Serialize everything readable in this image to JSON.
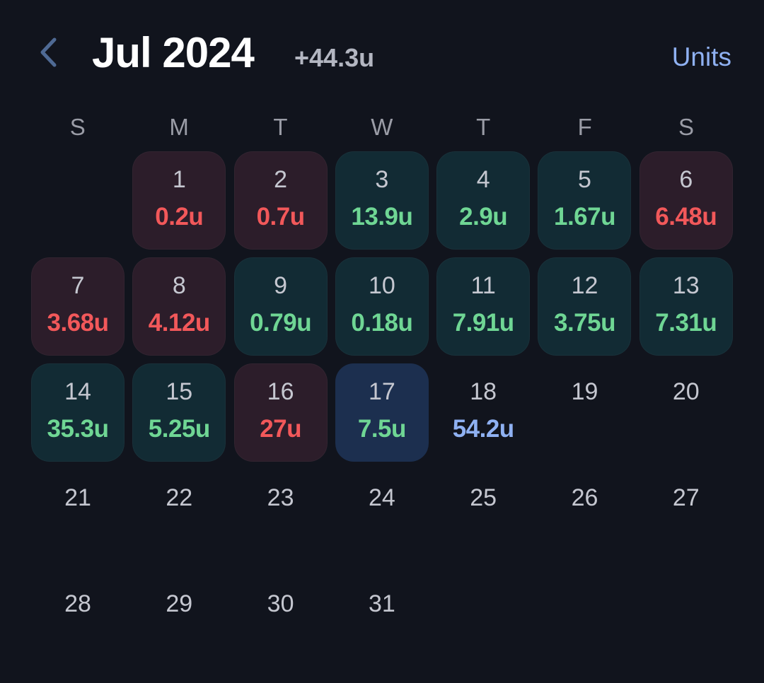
{
  "header": {
    "title": "Jul 2024",
    "total": "+44.3u",
    "units_label": "Units"
  },
  "colors": {
    "background": "#11141d",
    "negative": "#f2585a",
    "positive": "#6fd694",
    "accent": "#8fb1f2"
  },
  "weekdays": [
    "S",
    "M",
    "T",
    "W",
    "T",
    "F",
    "S"
  ],
  "leading_blank_days": 1,
  "days": [
    {
      "day": "1",
      "value": "0.2u",
      "status": "neg"
    },
    {
      "day": "2",
      "value": "0.7u",
      "status": "neg"
    },
    {
      "day": "3",
      "value": "13.9u",
      "status": "pos"
    },
    {
      "day": "4",
      "value": "2.9u",
      "status": "pos"
    },
    {
      "day": "5",
      "value": "1.67u",
      "status": "pos"
    },
    {
      "day": "6",
      "value": "6.48u",
      "status": "neg"
    },
    {
      "day": "7",
      "value": "3.68u",
      "status": "neg"
    },
    {
      "day": "8",
      "value": "4.12u",
      "status": "neg"
    },
    {
      "day": "9",
      "value": "0.79u",
      "status": "pos"
    },
    {
      "day": "10",
      "value": "0.18u",
      "status": "pos"
    },
    {
      "day": "11",
      "value": "7.91u",
      "status": "pos"
    },
    {
      "day": "12",
      "value": "3.75u",
      "status": "pos"
    },
    {
      "day": "13",
      "value": "7.31u",
      "status": "pos"
    },
    {
      "day": "14",
      "value": "35.3u",
      "status": "pos"
    },
    {
      "day": "15",
      "value": "5.25u",
      "status": "pos"
    },
    {
      "day": "16",
      "value": "27u",
      "status": "neg"
    },
    {
      "day": "17",
      "value": "7.5u",
      "status": "today"
    },
    {
      "day": "18",
      "value": "54.2u",
      "status": "proj"
    },
    {
      "day": "19",
      "value": "",
      "status": "empty"
    },
    {
      "day": "20",
      "value": "",
      "status": "empty"
    },
    {
      "day": "21",
      "value": "",
      "status": "empty"
    },
    {
      "day": "22",
      "value": "",
      "status": "empty"
    },
    {
      "day": "23",
      "value": "",
      "status": "empty"
    },
    {
      "day": "24",
      "value": "",
      "status": "empty"
    },
    {
      "day": "25",
      "value": "",
      "status": "empty"
    },
    {
      "day": "26",
      "value": "",
      "status": "empty"
    },
    {
      "day": "27",
      "value": "",
      "status": "empty"
    },
    {
      "day": "28",
      "value": "",
      "status": "empty"
    },
    {
      "day": "29",
      "value": "",
      "status": "empty"
    },
    {
      "day": "30",
      "value": "",
      "status": "empty"
    },
    {
      "day": "31",
      "value": "",
      "status": "empty"
    }
  ]
}
